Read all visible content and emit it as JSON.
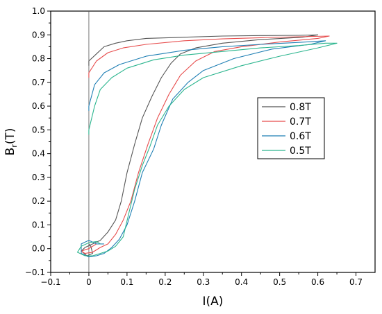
{
  "chart_data": {
    "type": "line",
    "xlabel": "I(A)",
    "ylabel_main": "B",
    "ylabel_sub": "r",
    "ylabel_tail": "(T)",
    "xlim": [
      -0.1,
      0.75
    ],
    "ylim": [
      -0.1,
      1.0
    ],
    "x_ticks": [
      -0.1,
      0,
      0.1,
      0.2,
      0.3,
      0.4,
      0.5,
      0.6,
      0.7
    ],
    "x_tick_labels": [
      "−0.1",
      "0",
      "0.1",
      "0.2",
      "0.3",
      "0.4",
      "0.5",
      "0.6",
      "0.7"
    ],
    "y_ticks": [
      -0.1,
      0,
      0.1,
      0.2,
      0.3,
      0.4,
      0.5,
      0.6,
      0.7,
      0.8,
      0.9,
      1.0
    ],
    "y_tick_labels": [
      "−0.1",
      "0.0",
      "0.1",
      "0.2",
      "0.3",
      "0.4",
      "0.5",
      "0.6",
      "0.7",
      "0.8",
      "0.9",
      "1.0"
    ],
    "vertical_line_x": 0,
    "grid": false,
    "legend_position": "center-right",
    "series": [
      {
        "name": "0.8T",
        "color": "#555555",
        "points": [
          [
            0,
            0.77
          ],
          [
            0,
            0.79
          ],
          [
            0.02,
            0.82
          ],
          [
            0.04,
            0.85
          ],
          [
            0.07,
            0.865
          ],
          [
            0.1,
            0.875
          ],
          [
            0.15,
            0.885
          ],
          [
            0.25,
            0.89
          ],
          [
            0.35,
            0.895
          ],
          [
            0.45,
            0.897
          ],
          [
            0.55,
            0.898
          ],
          [
            0.6,
            0.9
          ],
          [
            0.56,
            0.89
          ],
          [
            0.45,
            0.88
          ],
          [
            0.35,
            0.865
          ],
          [
            0.28,
            0.845
          ],
          [
            0.24,
            0.82
          ],
          [
            0.215,
            0.78
          ],
          [
            0.19,
            0.72
          ],
          [
            0.165,
            0.64
          ],
          [
            0.14,
            0.55
          ],
          [
            0.12,
            0.44
          ],
          [
            0.1,
            0.32
          ],
          [
            0.085,
            0.2
          ],
          [
            0.07,
            0.12
          ],
          [
            0.05,
            0.07
          ],
          [
            0.03,
            0.035
          ],
          [
            0.01,
            0.02
          ],
          [
            -0.01,
            0.005
          ],
          [
            -0.02,
            -0.01
          ],
          [
            -0.005,
            -0.03
          ],
          [
            0.01,
            -0.02
          ],
          [
            0.005,
            0.01
          ],
          [
            0.0,
            0.02
          ]
        ]
      },
      {
        "name": "0.7T",
        "color": "#e74c4c",
        "points": [
          [
            0,
            0.72
          ],
          [
            0,
            0.74
          ],
          [
            0.02,
            0.79
          ],
          [
            0.05,
            0.825
          ],
          [
            0.09,
            0.845
          ],
          [
            0.15,
            0.86
          ],
          [
            0.25,
            0.875
          ],
          [
            0.35,
            0.883
          ],
          [
            0.45,
            0.888
          ],
          [
            0.55,
            0.892
          ],
          [
            0.63,
            0.895
          ],
          [
            0.6,
            0.885
          ],
          [
            0.5,
            0.87
          ],
          [
            0.4,
            0.85
          ],
          [
            0.33,
            0.83
          ],
          [
            0.28,
            0.79
          ],
          [
            0.24,
            0.73
          ],
          [
            0.21,
            0.65
          ],
          [
            0.18,
            0.55
          ],
          [
            0.155,
            0.44
          ],
          [
            0.13,
            0.32
          ],
          [
            0.11,
            0.2
          ],
          [
            0.09,
            0.12
          ],
          [
            0.07,
            0.06
          ],
          [
            0.05,
            0.02
          ],
          [
            0.03,
            0.005
          ],
          [
            0.01,
            -0.015
          ],
          [
            -0.01,
            -0.02
          ],
          [
            -0.02,
            -0.01
          ],
          [
            0.0,
            0.0
          ],
          [
            0.02,
            0.02
          ]
        ]
      },
      {
        "name": "0.6T",
        "color": "#1f7fb4",
        "points": [
          [
            0,
            0.58
          ],
          [
            0,
            0.6
          ],
          [
            0.015,
            0.69
          ],
          [
            0.04,
            0.74
          ],
          [
            0.08,
            0.775
          ],
          [
            0.15,
            0.81
          ],
          [
            0.25,
            0.835
          ],
          [
            0.35,
            0.85
          ],
          [
            0.45,
            0.86
          ],
          [
            0.55,
            0.868
          ],
          [
            0.62,
            0.875
          ],
          [
            0.58,
            0.86
          ],
          [
            0.48,
            0.84
          ],
          [
            0.38,
            0.8
          ],
          [
            0.3,
            0.75
          ],
          [
            0.26,
            0.7
          ],
          [
            0.22,
            0.63
          ],
          [
            0.19,
            0.52
          ],
          [
            0.17,
            0.42
          ],
          [
            0.14,
            0.32
          ],
          [
            0.12,
            0.2
          ],
          [
            0.1,
            0.1
          ],
          [
            0.08,
            0.04
          ],
          [
            0.06,
            0.005
          ],
          [
            0.04,
            -0.02
          ],
          [
            0.02,
            -0.03
          ],
          [
            0.0,
            -0.035
          ],
          [
            -0.02,
            -0.02
          ],
          [
            -0.02,
            0.02
          ],
          [
            0.0,
            0.035
          ],
          [
            0.02,
            0.02
          ],
          [
            0.04,
            0.02
          ]
        ]
      },
      {
        "name": "0.5T",
        "color": "#2bb58e",
        "points": [
          [
            0,
            0.48
          ],
          [
            0,
            0.5
          ],
          [
            0.015,
            0.6
          ],
          [
            0.03,
            0.67
          ],
          [
            0.06,
            0.72
          ],
          [
            0.1,
            0.76
          ],
          [
            0.17,
            0.795
          ],
          [
            0.25,
            0.815
          ],
          [
            0.35,
            0.83
          ],
          [
            0.45,
            0.845
          ],
          [
            0.55,
            0.855
          ],
          [
            0.62,
            0.865
          ],
          [
            0.65,
            0.865
          ],
          [
            0.6,
            0.845
          ],
          [
            0.5,
            0.81
          ],
          [
            0.4,
            0.77
          ],
          [
            0.3,
            0.72
          ],
          [
            0.25,
            0.67
          ],
          [
            0.21,
            0.6
          ],
          [
            0.18,
            0.52
          ],
          [
            0.16,
            0.43
          ],
          [
            0.14,
            0.35
          ],
          [
            0.12,
            0.25
          ],
          [
            0.105,
            0.15
          ],
          [
            0.09,
            0.05
          ],
          [
            0.07,
            0.01
          ],
          [
            0.05,
            -0.01
          ],
          [
            0.03,
            -0.02
          ],
          [
            0.01,
            -0.03
          ],
          [
            -0.01,
            -0.03
          ],
          [
            -0.03,
            -0.015
          ],
          [
            -0.02,
            0.01
          ],
          [
            0.0,
            0.025
          ],
          [
            0.02,
            0.03
          ],
          [
            0.03,
            0.02
          ]
        ]
      }
    ]
  }
}
